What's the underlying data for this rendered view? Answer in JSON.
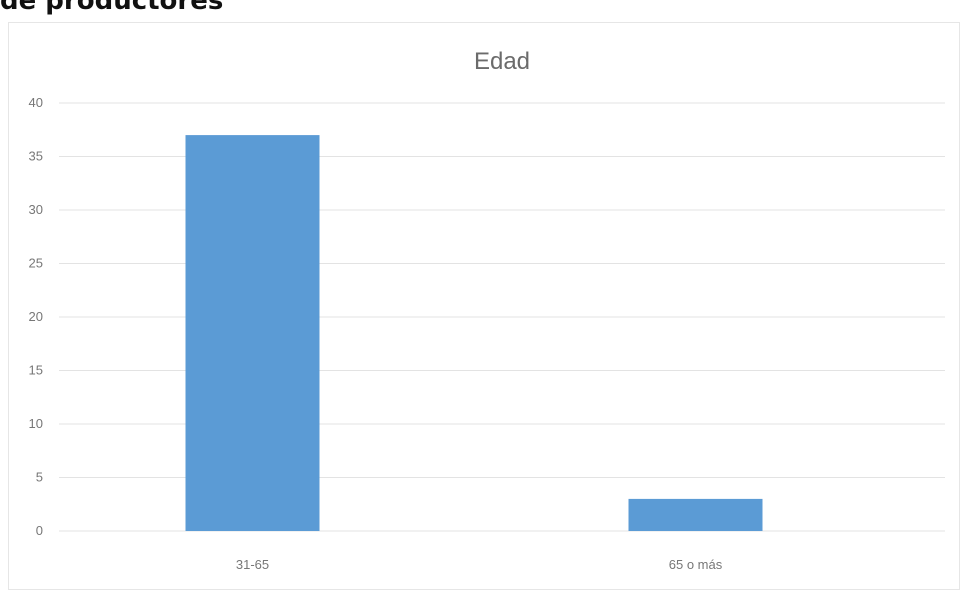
{
  "page": {
    "heading": "de productores"
  },
  "chart_data": {
    "type": "bar",
    "title": "Edad",
    "xlabel": "",
    "ylabel": "",
    "categories": [
      "31-65",
      "65 o más"
    ],
    "values": [
      37,
      3
    ],
    "ylim": [
      0,
      40
    ],
    "yticks": [
      0,
      5,
      10,
      15,
      20,
      25,
      30,
      35,
      40
    ],
    "grid": true,
    "legend": "none",
    "colors": {
      "bar": "#5b9bd5",
      "grid": "#e3e3e3",
      "text": "#777777"
    }
  }
}
